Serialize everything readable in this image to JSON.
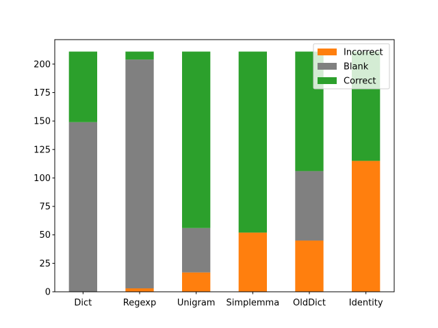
{
  "chart_data": {
    "type": "bar",
    "stacked": true,
    "categories": [
      "Dict",
      "Regexp",
      "Unigram",
      "Simplemma",
      "OldDict",
      "Identity"
    ],
    "series": [
      {
        "name": "Incorrect",
        "color": "#ff7f0e",
        "values": [
          0,
          3,
          17,
          52,
          45,
          115
        ]
      },
      {
        "name": "Blank",
        "color": "#808080",
        "values": [
          149,
          201,
          39,
          0,
          61,
          0
        ]
      },
      {
        "name": "Correct",
        "color": "#2ca02c",
        "values": [
          62,
          7,
          155,
          159,
          105,
          96
        ]
      }
    ],
    "title": "",
    "xlabel": "",
    "ylabel": "",
    "ylim": [
      0,
      221.5
    ],
    "yticks": [
      0,
      25,
      50,
      75,
      100,
      125,
      150,
      175,
      200
    ],
    "grid": false,
    "legend_position": "top-right"
  }
}
